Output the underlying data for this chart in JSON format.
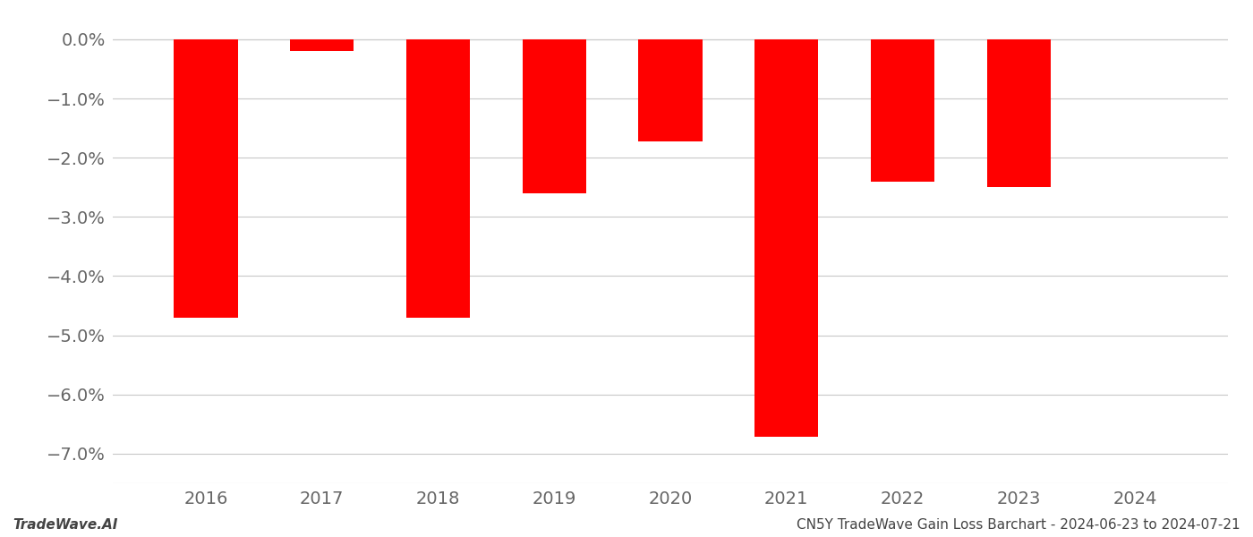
{
  "years": [
    2016,
    2017,
    2018,
    2019,
    2020,
    2021,
    2022,
    2023,
    2024
  ],
  "values": [
    -4.7,
    -0.2,
    -4.7,
    -2.6,
    -1.72,
    -6.72,
    -2.4,
    -2.5,
    0.0
  ],
  "bar_color": "#ff0000",
  "bg_color": "#ffffff",
  "grid_color": "#c8c8c8",
  "tick_color": "#666666",
  "ylim": [
    -7.5,
    0.3
  ],
  "yticks": [
    0.0,
    -1.0,
    -2.0,
    -3.0,
    -4.0,
    -5.0,
    -6.0,
    -7.0
  ],
  "footer_left": "TradeWave.AI",
  "footer_right": "CN5Y TradeWave Gain Loss Barchart - 2024-06-23 to 2024-07-21",
  "bar_width": 0.55,
  "xlim_left": 2015.2,
  "xlim_right": 2024.8,
  "tick_fontsize": 14,
  "footer_fontsize": 11
}
